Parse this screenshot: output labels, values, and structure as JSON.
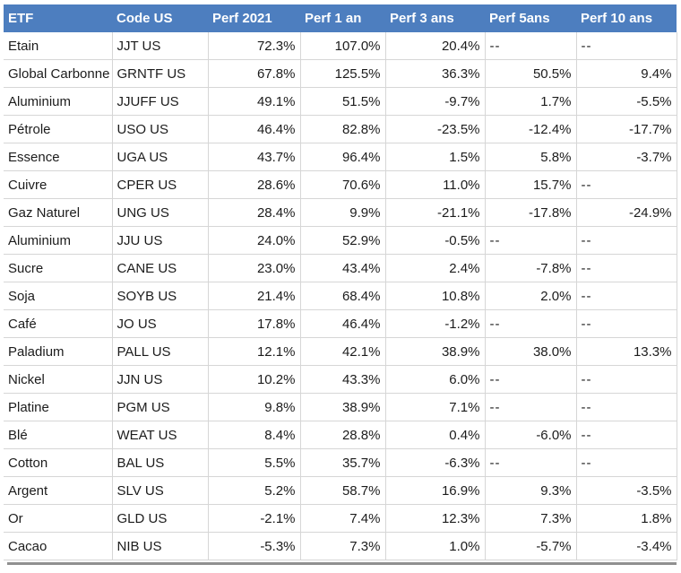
{
  "chart_data": {
    "type": "table",
    "columns": [
      "ETF",
      "Code US",
      "Perf 2021",
      "Perf 1 an",
      "Perf 3 ans",
      "Perf 5ans",
      "Perf 10 ans"
    ],
    "na_marker": "--",
    "rows": [
      [
        "Etain",
        "JJT US",
        "72.3%",
        "107.0%",
        "20.4%",
        "--",
        "--"
      ],
      [
        "Global Carbonne",
        "GRNTF US",
        "67.8%",
        "125.5%",
        "36.3%",
        "50.5%",
        "9.4%"
      ],
      [
        "Aluminium",
        "JJUFF US",
        "49.1%",
        "51.5%",
        "-9.7%",
        "1.7%",
        "-5.5%"
      ],
      [
        "Pétrole",
        "USO US",
        "46.4%",
        "82.8%",
        "-23.5%",
        "-12.4%",
        "-17.7%"
      ],
      [
        "Essence",
        "UGA US",
        "43.7%",
        "96.4%",
        "1.5%",
        "5.8%",
        "-3.7%"
      ],
      [
        "Cuivre",
        "CPER US",
        "28.6%",
        "70.6%",
        "11.0%",
        "15.7%",
        "--"
      ],
      [
        "Gaz Naturel",
        "UNG US",
        "28.4%",
        "9.9%",
        "-21.1%",
        "-17.8%",
        "-24.9%"
      ],
      [
        "Aluminium",
        "JJU US",
        "24.0%",
        "52.9%",
        "-0.5%",
        "--",
        "--"
      ],
      [
        "Sucre",
        "CANE US",
        "23.0%",
        "43.4%",
        "2.4%",
        "-7.8%",
        "--"
      ],
      [
        "Soja",
        "SOYB US",
        "21.4%",
        "68.4%",
        "10.8%",
        "2.0%",
        "--"
      ],
      [
        "Café",
        "JO US",
        "17.8%",
        "46.4%",
        "-1.2%",
        "--",
        "--"
      ],
      [
        "Paladium",
        "PALL US",
        "12.1%",
        "42.1%",
        "38.9%",
        "38.0%",
        "13.3%"
      ],
      [
        "Nickel",
        "JJN US",
        "10.2%",
        "43.3%",
        "6.0%",
        "--",
        "--"
      ],
      [
        "Platine",
        "PGM US",
        "9.8%",
        "38.9%",
        "7.1%",
        "--",
        "--"
      ],
      [
        "Blé",
        "WEAT US",
        "8.4%",
        "28.8%",
        "0.4%",
        "-6.0%",
        "--"
      ],
      [
        "Cotton",
        "BAL US",
        "5.5%",
        "35.7%",
        "-6.3%",
        "--",
        "--"
      ],
      [
        "Argent",
        "SLV US",
        "5.2%",
        "58.7%",
        "16.9%",
        "9.3%",
        "-3.5%"
      ],
      [
        "Or",
        "GLD US",
        "-2.1%",
        "7.4%",
        "12.3%",
        "7.3%",
        "1.8%"
      ],
      [
        "Cacao",
        "NIB US",
        "-5.3%",
        "7.3%",
        "1.0%",
        "-5.7%",
        "-3.4%"
      ]
    ]
  },
  "colors": {
    "header_bg": "#4d7ebf",
    "header_text": "#ffffff",
    "body_text": "#1c1c1c",
    "grid_line": "#d6d6d6",
    "bottom_bar": "#909090",
    "background": "#ffffff"
  }
}
